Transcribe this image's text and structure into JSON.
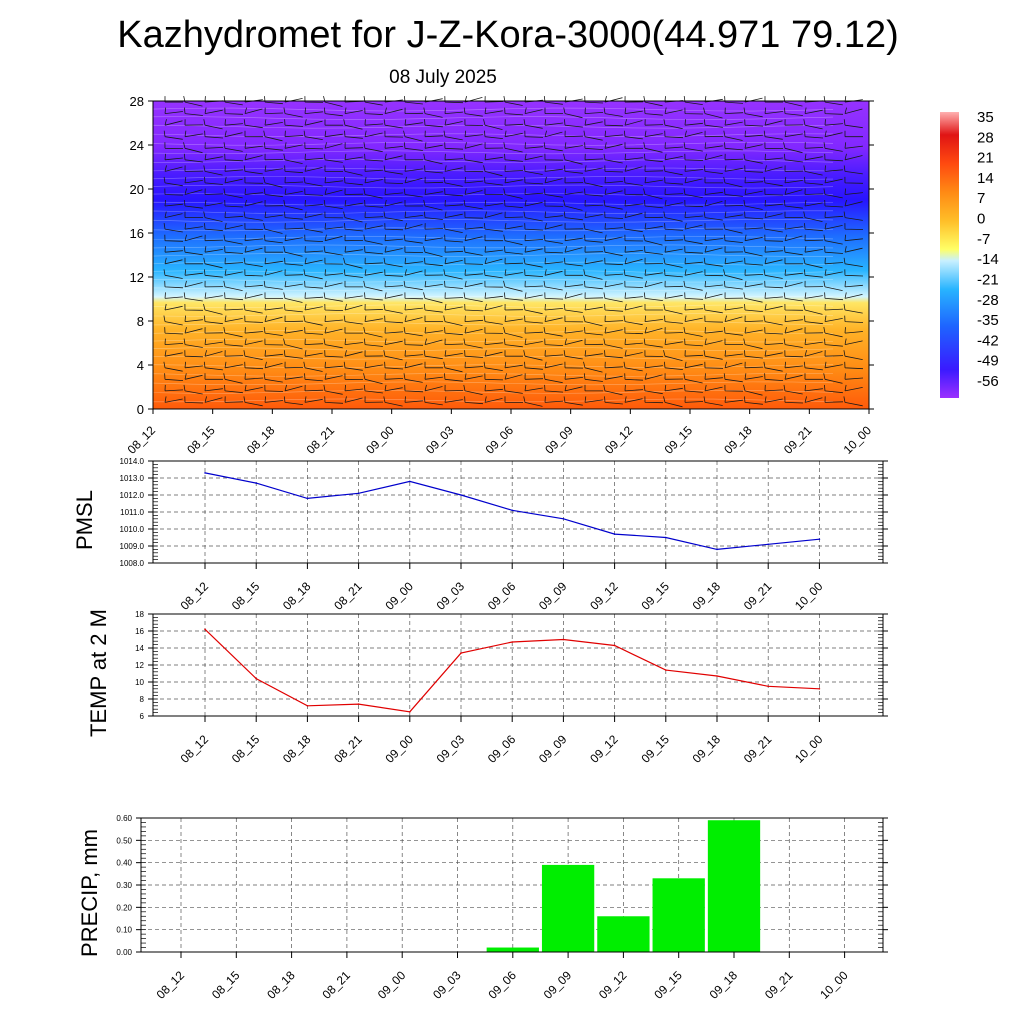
{
  "title": "Kazhydromet for J-Z-Kora-3000(44.971 79.12)",
  "date": "08 July 2025",
  "colors": {
    "pmsl_line": "#0000cc",
    "temp_line": "#e00000",
    "precip_bar": "#00ee00",
    "colorbar": [
      "#9b30ff",
      "#3a1aff",
      "#1e64ff",
      "#28b4ff",
      "#c8f0ff",
      "#ffff66",
      "#ffbe28",
      "#ff8a14",
      "#ff4a10",
      "#e01414",
      "#ffb0b0"
    ]
  },
  "chart_data": [
    {
      "type": "heatmap",
      "title": "",
      "ylabel": "",
      "y_ticks": [
        "0",
        "4",
        "8",
        "12",
        "16",
        "20",
        "24",
        "28"
      ],
      "ylim": [
        0,
        28
      ],
      "x": [
        "08_12",
        "08_15",
        "08_18",
        "08_21",
        "09_00",
        "09_03",
        "09_06",
        "09_09",
        "09_12",
        "09_15",
        "09_18",
        "09_21",
        "10_00"
      ],
      "colorbar_labels": [
        "35",
        "28",
        "21",
        "14",
        "7",
        "0",
        "-7",
        "-14",
        "-21",
        "-28",
        "-35",
        "-42",
        "-49",
        "-56"
      ],
      "colorbar_range": [
        -60,
        38
      ],
      "overlay": "wind barbs"
    },
    {
      "type": "line",
      "ylabel": "PMSL",
      "x": [
        "08_12",
        "08_15",
        "08_18",
        "08_21",
        "09_00",
        "09_03",
        "09_06",
        "09_09",
        "09_12",
        "09_15",
        "09_18",
        "09_21",
        "10_00"
      ],
      "y_ticks": [
        "1008.0",
        "1009.0",
        "1010.0",
        "1011.0",
        "1012.0",
        "1013.0",
        "1014.0"
      ],
      "ylim": [
        1008,
        1014
      ],
      "series": [
        {
          "values": [
            1013.3,
            1012.7,
            1011.8,
            1012.1,
            1012.8,
            1012.0,
            1011.1,
            1010.6,
            1009.7,
            1009.5,
            1008.8,
            1009.1,
            1009.4
          ]
        }
      ],
      "grid": true
    },
    {
      "type": "line",
      "ylabel": "TEMP at 2 M",
      "x": [
        "08_12",
        "08_15",
        "08_18",
        "08_21",
        "09_00",
        "09_03",
        "09_06",
        "09_09",
        "09_12",
        "09_15",
        "09_18",
        "09_21",
        "10_00"
      ],
      "y_ticks": [
        "6",
        "8",
        "10",
        "12",
        "14",
        "16",
        "18"
      ],
      "ylim": [
        6,
        18
      ],
      "series": [
        {
          "values": [
            16.2,
            10.4,
            7.2,
            7.4,
            6.5,
            13.4,
            14.7,
            15.0,
            14.3,
            11.4,
            10.7,
            9.5,
            9.2
          ]
        }
      ],
      "grid": true
    },
    {
      "type": "bar",
      "ylabel": "PRECIP, mm",
      "categories": [
        "08_12",
        "08_15",
        "08_18",
        "08_21",
        "09_00",
        "09_03",
        "09_06",
        "09_09",
        "09_12",
        "09_15",
        "09_18",
        "09_21",
        "10_00"
      ],
      "values": [
        0,
        0,
        0,
        0,
        0,
        0,
        0.02,
        0.39,
        0.16,
        0.33,
        0.59,
        0,
        0
      ],
      "y_ticks": [
        "0.00",
        "0.10",
        "0.20",
        "0.30",
        "0.40",
        "0.50",
        "0.60"
      ],
      "ylim": [
        0,
        0.6
      ],
      "grid": true
    }
  ]
}
